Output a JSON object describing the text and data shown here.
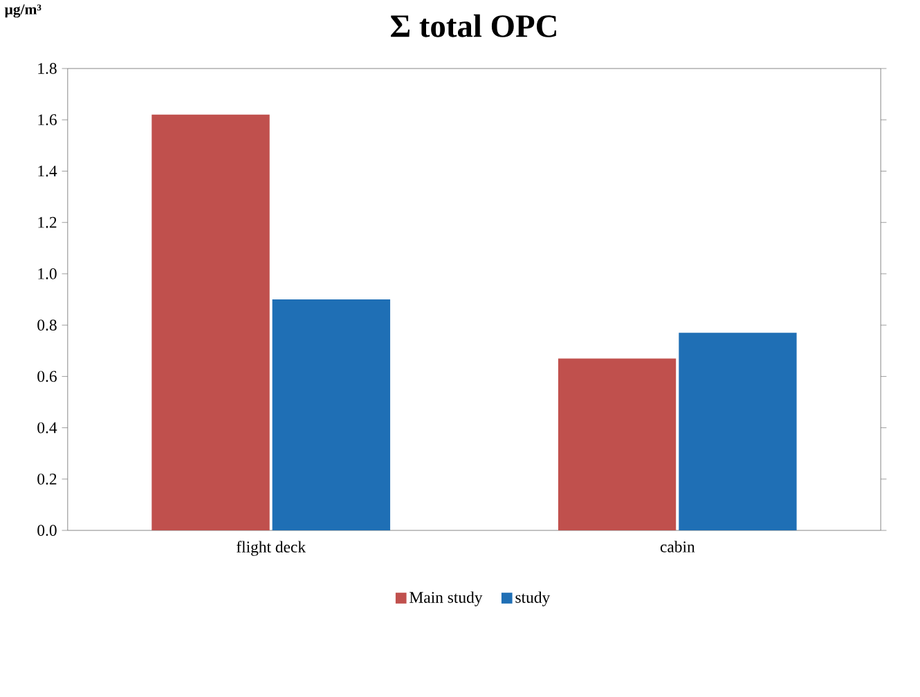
{
  "chart_data": {
    "type": "bar",
    "title": "Σ total OPC",
    "ylabel": "µg/m³",
    "categories": [
      "flight deck",
      "cabin"
    ],
    "series": [
      {
        "name": "Main study",
        "color": "#c0504d",
        "values": [
          1.62,
          0.67
        ]
      },
      {
        "name": "study",
        "color": "#1f6fb5",
        "values": [
          0.9,
          0.77
        ]
      }
    ],
    "ylim": [
      0,
      1.8
    ],
    "yticks": [
      {
        "value": 0,
        "label": "0.0"
      },
      {
        "value": 0.2,
        "label": "0.2"
      },
      {
        "value": 0.4,
        "label": "0.4"
      },
      {
        "value": 0.6,
        "label": "0.6"
      },
      {
        "value": 0.8,
        "label": "0.8"
      },
      {
        "value": 1.0,
        "label": "1.0"
      },
      {
        "value": 1.2,
        "label": "1.2"
      },
      {
        "value": 1.4,
        "label": "1.4"
      },
      {
        "value": 1.6,
        "label": "1.6"
      },
      {
        "value": 1.8,
        "label": "1.8"
      }
    ],
    "legend": "bottom",
    "grid": false
  }
}
